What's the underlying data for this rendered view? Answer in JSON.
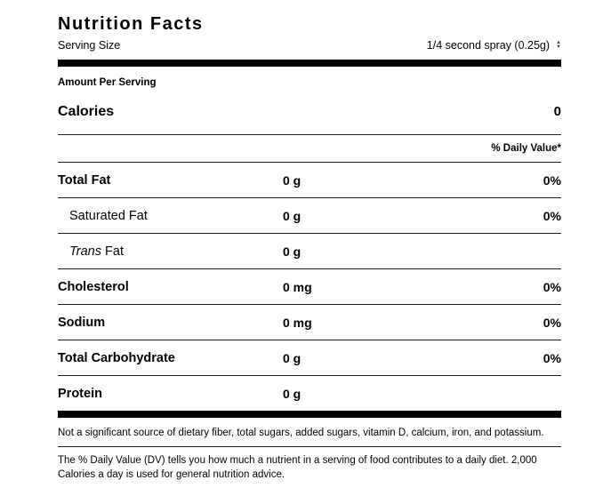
{
  "colors": {
    "text": "#000000",
    "rule": "#1f1f1f",
    "bar": "#000000",
    "background": "#ffffff"
  },
  "label": {
    "title": "Nutrition Facts",
    "serving": {
      "label": "Serving Size",
      "value": "1/4 second spray (0.25g)",
      "stepper_icon": "up-down-arrows"
    },
    "amount_per_serving": "Amount Per Serving",
    "calories": {
      "label": "Calories",
      "value": "0"
    },
    "daily_value_header": "% Daily Value*",
    "rows": [
      {
        "id": "total-fat",
        "label": "Total Fat",
        "bold": true,
        "indent": false,
        "amount": "0 g",
        "dv": "0%"
      },
      {
        "id": "saturated-fat",
        "label": "Saturated Fat",
        "bold": false,
        "indent": true,
        "amount": "0 g",
        "dv": "0%"
      },
      {
        "id": "trans-fat",
        "label_italic": "Trans",
        "label": " Fat",
        "bold": false,
        "indent": true,
        "amount": "0 g",
        "dv": ""
      },
      {
        "id": "cholesterol",
        "label": "Cholesterol",
        "bold": true,
        "indent": false,
        "amount": "0 mg",
        "dv": "0%"
      },
      {
        "id": "sodium",
        "label": "Sodium",
        "bold": true,
        "indent": false,
        "amount": "0 mg",
        "dv": "0%"
      },
      {
        "id": "total-carbohydrate",
        "label": "Total Carbohydrate",
        "bold": true,
        "indent": false,
        "amount": "0 g",
        "dv": "0%"
      },
      {
        "id": "protein",
        "label": "Protein",
        "bold": true,
        "indent": false,
        "amount": "0 g",
        "dv": ""
      }
    ],
    "footnotes": [
      "Not a significant source of dietary fiber, total sugars, added sugars, vitamin D, calcium, iron, and potassium.",
      "The % Daily Value (DV) tells you how much a nutrient in a serving of food contributes to a daily diet. 2,000 Calories a day is used for general nutrition advice."
    ]
  }
}
